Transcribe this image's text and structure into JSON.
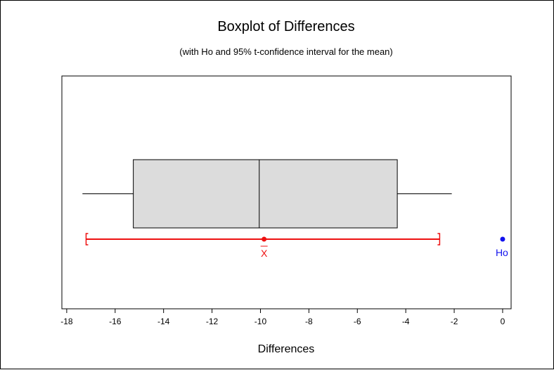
{
  "chart_data": {
    "type": "boxplot",
    "title": "Boxplot of Differences",
    "subtitle": "(with Ho and 95% t-confidence interval for the mean)",
    "xlabel": "Differences",
    "xlim": [
      -18.2,
      0.35
    ],
    "xticks": [
      -18,
      -16,
      -14,
      -12,
      -10,
      -8,
      -6,
      -4,
      -2,
      0
    ],
    "box": {
      "whisker_low": -17.35,
      "q1": -15.25,
      "median": -10.05,
      "q3": -4.35,
      "whisker_high": -2.1
    },
    "mean": -9.85,
    "mean_label": "X",
    "ci": [
      -17.2,
      -2.6
    ],
    "h0": 0,
    "h0_label": "Ho",
    "colors": {
      "box_fill": "#dcdcdc",
      "box_stroke": "#000000",
      "ci": "#ee1111",
      "h0": "#1111ee"
    }
  }
}
